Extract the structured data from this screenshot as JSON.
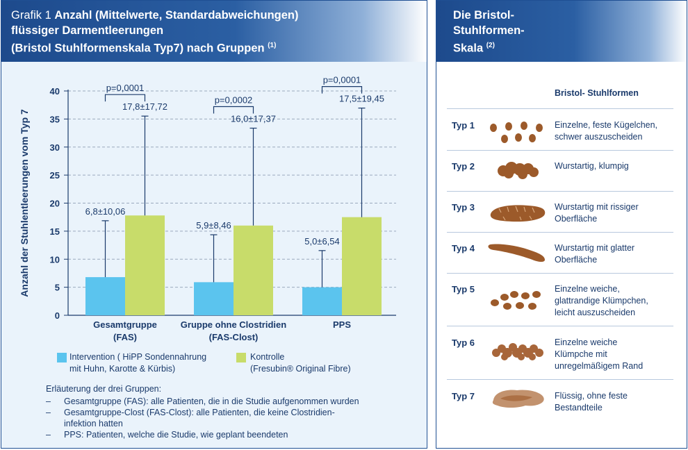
{
  "left": {
    "title_prefix": "Grafik 1",
    "title_line1": "Anzahl (Mittelwerte, Standardabweichungen)",
    "title_line2": "flüssiger Darmentleerungen",
    "title_line3": "(Bristol Stuhlformenskala Typ7) nach Gruppen",
    "title_ref": "(1)"
  },
  "chart_data": {
    "type": "bar",
    "ylabel": "Anzahl der Stuhlentleerungen vom Typ 7",
    "ylim": [
      0,
      40
    ],
    "yticks": [
      0,
      5,
      10,
      15,
      20,
      25,
      30,
      35,
      40
    ],
    "grid": "dashed-horizontal",
    "categories": [
      {
        "line1": "Gesamtgruppe",
        "line2": "(FAS)"
      },
      {
        "line1": "Gruppe ohne Clostridien",
        "line2": "(FAS-Clost)"
      },
      {
        "line1": "PPS",
        "line2": ""
      }
    ],
    "series": [
      {
        "name": "Intervention",
        "color": "#5bc4ee",
        "values": [
          6.8,
          5.9,
          5.0
        ],
        "sd": [
          10.06,
          8.46,
          6.54
        ],
        "labels": [
          "6,8±10,06",
          "5,9±8,46",
          "5,0±6,54"
        ]
      },
      {
        "name": "Kontrolle",
        "color": "#c8dc6a",
        "values": [
          17.8,
          16.0,
          17.5
        ],
        "sd": [
          17.72,
          17.37,
          19.45
        ],
        "labels": [
          "17,8±17,72",
          "16,0±17,37",
          "17,5±19,45"
        ]
      }
    ],
    "pvalues": [
      "p=0,0001",
      "p=0,0002",
      "p=0,0001"
    ]
  },
  "legend": {
    "intervention_line1": "Intervention ( HiPP Sondennahrung",
    "intervention_line2": "mit Huhn, Karotte & Kürbis)",
    "kontrolle_line1": "Kontrolle",
    "kontrolle_line2": "(Fresubin® Original Fibre)"
  },
  "notes": {
    "heading": "Erläuterung der drei Gruppen:",
    "items": [
      {
        "dash": "–",
        "text": "Gesamtgruppe (FAS): alle Patienten, die in die Studie aufgenommen wurden"
      },
      {
        "dash": "–",
        "text": "Gesamtgruppe-Clost (FAS-Clost): alle Patienten, die keine Clostridien-"
      },
      {
        "dash": "",
        "text": "infektion hatten"
      },
      {
        "dash": "–",
        "text": "PPS: Patienten, welche die Studie, wie geplant beendeten"
      }
    ]
  },
  "right": {
    "title_line1": "Die Bristol-",
    "title_line2": "Stuhlformen-",
    "title_line3": "Skala",
    "title_ref": "(2)",
    "column_header": "Bristol- Stuhlformen",
    "types": [
      {
        "label": "Typ 1",
        "desc": [
          "Einzelne, feste Kügelchen,",
          "schwer auszuscheiden"
        ],
        "icon": "stool-type1-icon"
      },
      {
        "label": "Typ 2",
        "desc": [
          "Wurstartig, klumpig"
        ],
        "icon": "stool-type2-icon"
      },
      {
        "label": "Typ 3",
        "desc": [
          "Wurstartig mit rissiger",
          "Oberfläche"
        ],
        "icon": "stool-type3-icon"
      },
      {
        "label": "Typ 4",
        "desc": [
          "Wurstartig mit glatter",
          "Oberfläche"
        ],
        "icon": "stool-type4-icon"
      },
      {
        "label": "Typ 5",
        "desc": [
          "Einzelne weiche,",
          "glattrandige Klümpchen,",
          "leicht auszuscheiden"
        ],
        "icon": "stool-type5-icon"
      },
      {
        "label": "Typ 6",
        "desc": [
          "Einzelne weiche",
          "Klümpche mit",
          "unregelmäßigem Rand"
        ],
        "icon": "stool-type6-icon"
      },
      {
        "label": "Typ 7",
        "desc": [
          "Flüssig, ohne feste",
          "Bestandteile"
        ],
        "icon": "stool-type7-icon"
      }
    ],
    "stool_color": "#9c5a2a"
  }
}
